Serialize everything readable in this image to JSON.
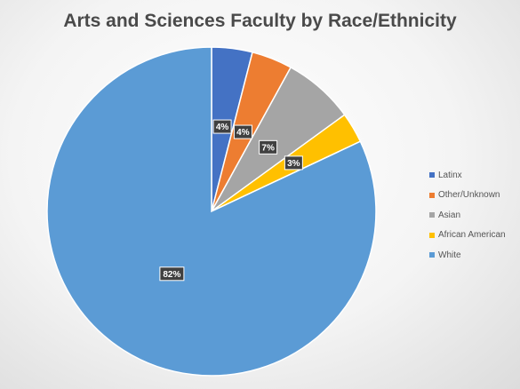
{
  "chart_data": {
    "type": "pie",
    "title": "Arts and Sciences Faculty by Race/Ethnicity",
    "categories": [
      "Latinx",
      "Other/Unknown",
      "Asian",
      "African American",
      "White"
    ],
    "values": [
      4,
      4,
      7,
      3,
      82
    ],
    "data_labels": [
      "4%",
      "4%",
      "7%",
      "3%",
      "82%"
    ],
    "colors": [
      "#4472C4",
      "#ED7D31",
      "#A5A5A5",
      "#FFC000",
      "#5B9BD5"
    ],
    "unit": "percent",
    "legend_position": "right"
  }
}
